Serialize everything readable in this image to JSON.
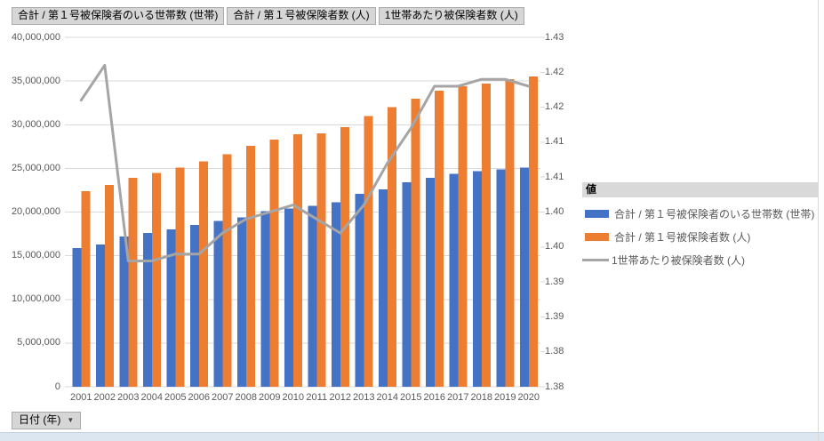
{
  "field_buttons": [
    {
      "label": "合計 / 第１号被保険者のいる世帯数 (世帯)"
    },
    {
      "label": "合計 / 第１号被保険者数 (人)"
    },
    {
      "label": "1世帯あたり被保険者数 (人)"
    }
  ],
  "axis_field_button": {
    "label": "日付 (年)",
    "arrow": "▼"
  },
  "legend": {
    "title": "値",
    "entries": [
      {
        "label": "合計 / 第１号被保険者のいる世帯数 (世帯)",
        "type": "bar",
        "color": "#4472C4"
      },
      {
        "label": "合計 / 第１号被保険者数 (人)",
        "type": "bar",
        "color": "#ED7D31"
      },
      {
        "label": "1世帯あたり被保険者数 (人)",
        "type": "line",
        "color": "#A5A5A5"
      }
    ]
  },
  "colors": {
    "bar_households": "#4472C4",
    "bar_insured": "#ED7D31",
    "ratio_line": "#A5A5A5",
    "gridline": "#D9D9D9",
    "axis_text": "#595959",
    "button_bg": "#D6D6D6",
    "legend_header_bg": "#D9D9D9",
    "bottom_strip": "#DCE6F1"
  },
  "chart_data": {
    "type": "bar",
    "subtype": "combo-bar-line",
    "categories": [
      "2001",
      "2002",
      "2003",
      "2004",
      "2005",
      "2006",
      "2007",
      "2008",
      "2009",
      "2010",
      "2011",
      "2012",
      "2013",
      "2014",
      "2015",
      "2016",
      "2017",
      "2018",
      "2019",
      "2020"
    ],
    "series": [
      {
        "name": "合計 / 第１号被保険者のいる世帯数 (世帯)",
        "type": "bar",
        "axis": "left",
        "color": "#4472C4",
        "values": [
          15900000,
          16300000,
          17200000,
          17600000,
          18000000,
          18500000,
          19000000,
          19400000,
          20100000,
          20400000,
          20700000,
          21100000,
          22100000,
          22600000,
          23400000,
          23900000,
          24400000,
          24700000,
          24900000,
          25100000
        ]
      },
      {
        "name": "合計 / 第１号被保険者数 (人)",
        "type": "bar",
        "axis": "left",
        "color": "#ED7D31",
        "values": [
          22400000,
          23100000,
          23900000,
          24500000,
          25100000,
          25800000,
          26600000,
          27600000,
          28300000,
          28900000,
          29000000,
          29700000,
          31000000,
          32000000,
          33000000,
          33900000,
          34400000,
          34700000,
          35200000,
          35500000
        ]
      },
      {
        "name": "1世帯あたり被保険者数 (人)",
        "type": "line",
        "axis": "right",
        "color": "#A5A5A5",
        "values": [
          1.421,
          1.426,
          1.398,
          1.398,
          1.399,
          1.399,
          1.402,
          1.404,
          1.405,
          1.406,
          1.404,
          1.402,
          1.406,
          1.412,
          1.417,
          1.423,
          1.423,
          1.424,
          1.424,
          1.423
        ]
      }
    ],
    "left_axis": {
      "min": 0,
      "max": 40000000,
      "step": 5000000,
      "tick_labels": [
        "40,000,000",
        "35,000,000",
        "30,000,000",
        "25,000,000",
        "20,000,000",
        "15,000,000",
        "10,000,000",
        "5,000,000",
        "0"
      ]
    },
    "right_axis": {
      "min": 1.38,
      "max": 1.43,
      "step": 0.005,
      "tick_labels": [
        "1.43",
        "1.42",
        "1.42",
        "1.41",
        "1.41",
        "1.40",
        "1.40",
        "1.39",
        "1.39",
        "1.38",
        "1.38"
      ]
    },
    "xlabel": "日付 (年)",
    "ylabel": "",
    "grid": true,
    "legend_position": "right"
  }
}
